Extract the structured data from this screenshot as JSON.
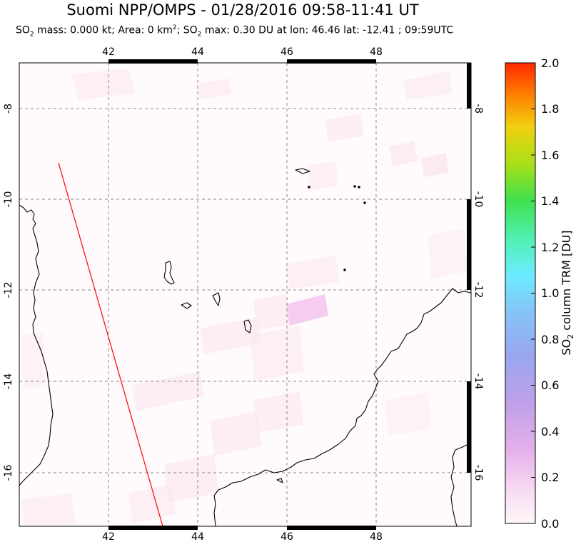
{
  "title": "Suomi NPP/OMPS - 01/28/2016 09:58-11:41 UT",
  "subtitle": {
    "p1": "SO",
    "s1": "2",
    "p2": " mass: 0.000 kt; Area: 0 km",
    "s2": "2",
    "p3": "; SO",
    "s3": "2",
    "p4": " max: 0.30 DU at lon: 46.46 lat: -12.41 ; 09:59UTC"
  },
  "map": {
    "lon_ticks": [
      "42",
      "44",
      "46",
      "48"
    ],
    "lat_ticks": [
      "-8",
      "-10",
      "-12",
      "-14",
      "-16"
    ],
    "lon_range": [
      40.0,
      50.0
    ],
    "lat_range": [
      -7.0,
      -17.5
    ],
    "coastline_color": "#000000",
    "track_color": "#ff0000"
  },
  "colorbar": {
    "label_pre": "SO",
    "label_sub": "2",
    "label_post": " column TRM [DU]",
    "ticks": [
      "2.0",
      "1.8",
      "1.6",
      "1.4",
      "1.2",
      "1.0",
      "0.8",
      "0.6",
      "0.4",
      "0.2",
      "0.0"
    ],
    "colors": [
      "#fff8f8",
      "#f3c8f0",
      "#d7a0e6",
      "#a898e8",
      "#9aa8f0",
      "#80ddff",
      "#60f0d0",
      "#40e060",
      "#90e020",
      "#e0e010",
      "#ff9000",
      "#ff2800"
    ]
  }
}
